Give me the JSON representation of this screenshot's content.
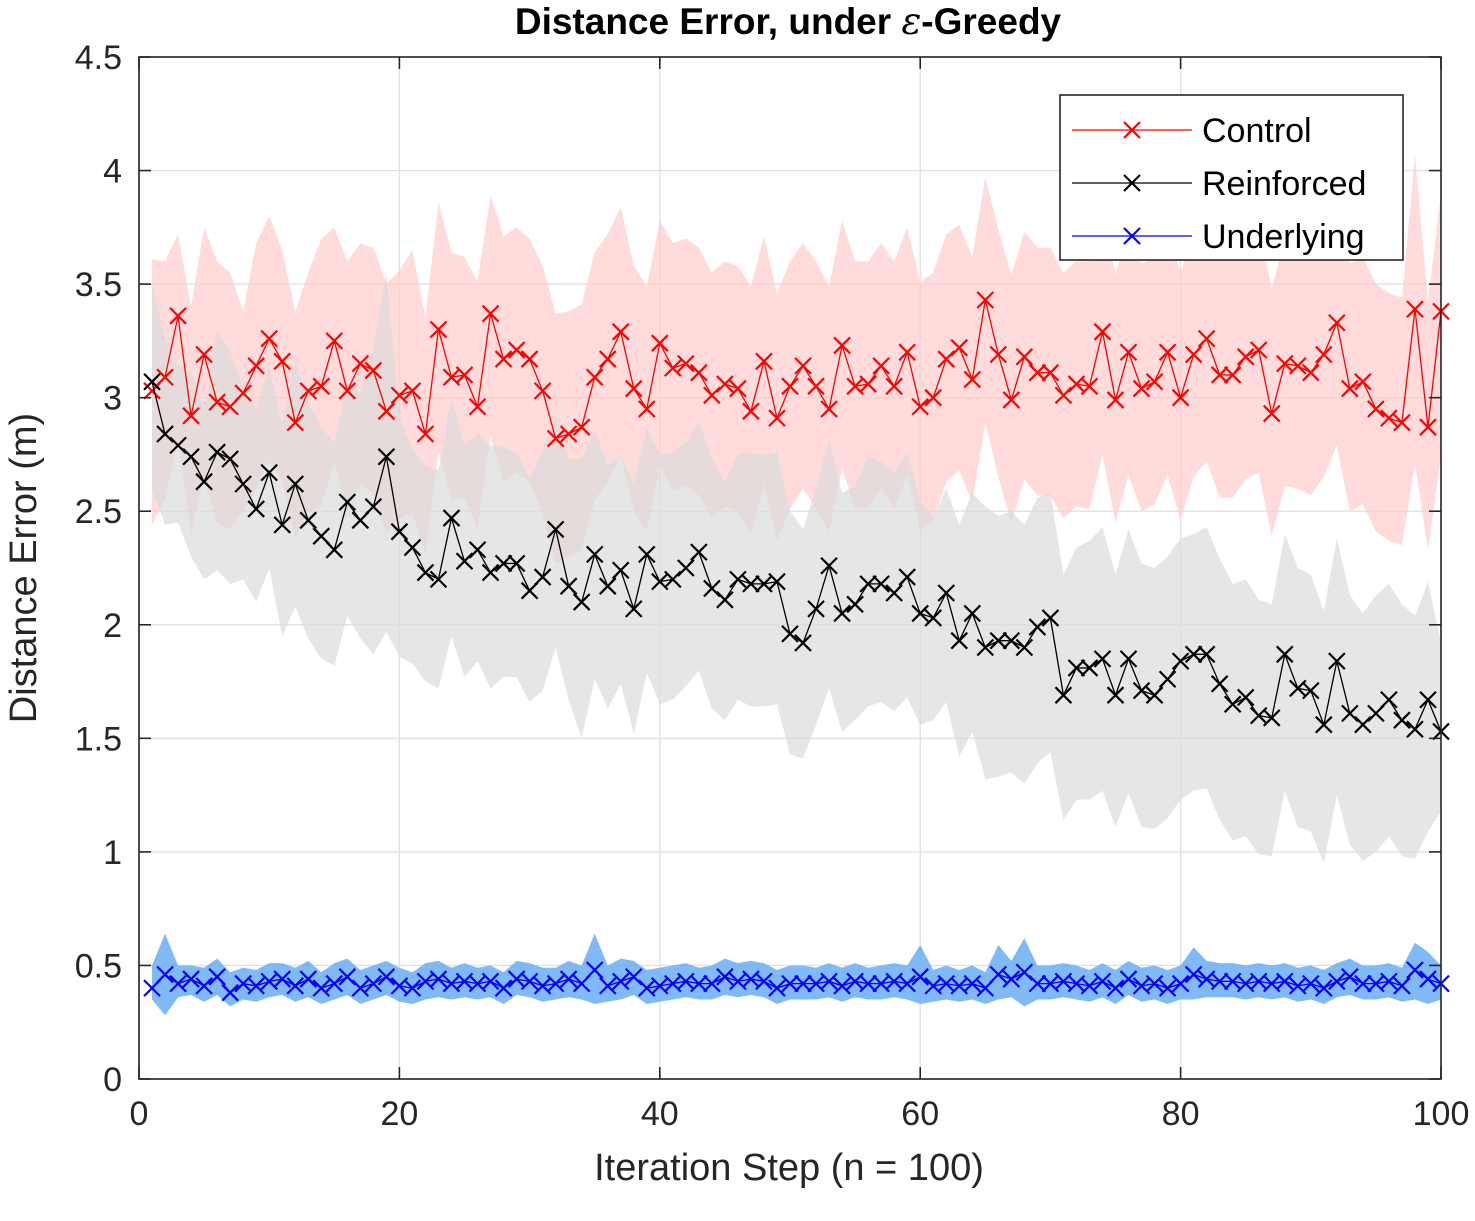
{
  "chart_data": {
    "type": "line",
    "title_prefix": "Distance Error, under ",
    "title_symbol": "ε",
    "title_suffix": "-Greedy",
    "xlabel": "Iteration Step (n = 100)",
    "ylabel": "Distance Error (m)",
    "xlim": [
      0,
      100
    ],
    "ylim": [
      0,
      4.5
    ],
    "xticks": [
      0,
      20,
      40,
      60,
      80,
      100
    ],
    "yticks": [
      0,
      0.5,
      1,
      1.5,
      2,
      2.5,
      3,
      3.5,
      4,
      4.5
    ],
    "xtick_labels": [
      "0",
      "20",
      "40",
      "60",
      "80",
      "100"
    ],
    "ytick_labels": [
      "0",
      "0.5",
      "1",
      "1.5",
      "2",
      "2.5",
      "3",
      "3.5",
      "4",
      "4.5"
    ],
    "grid": true,
    "legend_position": "top-right",
    "series": [
      {
        "name": "Control",
        "color": "#ff0000",
        "band_color": "#ffcccc",
        "marker": "x",
        "x_start": 1,
        "values": [
          3.03,
          3.09,
          3.36,
          2.92,
          3.19,
          2.98,
          2.96,
          3.02,
          3.14,
          3.26,
          3.16,
          2.89,
          3.03,
          3.05,
          3.25,
          3.03,
          3.15,
          3.12,
          2.94,
          3.01,
          3.03,
          2.84,
          3.3,
          3.09,
          3.1,
          2.96,
          3.37,
          3.17,
          3.21,
          3.17,
          3.03,
          2.82,
          2.84,
          2.87,
          3.09,
          3.17,
          3.29,
          3.04,
          2.95,
          3.24,
          3.13,
          3.15,
          3.11,
          3.01,
          3.06,
          3.04,
          2.94,
          3.16,
          2.91,
          3.05,
          3.14,
          3.05,
          2.95,
          3.23,
          3.05,
          3.06,
          3.14,
          3.05,
          3.2,
          2.96,
          3.0,
          3.17,
          3.22,
          3.08,
          3.43,
          3.19,
          2.99,
          3.18,
          3.11,
          3.11,
          3.01,
          3.06,
          3.05,
          3.29,
          2.99,
          3.2,
          3.04,
          3.07,
          3.2,
          3.0,
          3.19,
          3.26,
          3.1,
          3.1,
          3.18,
          3.21,
          2.93,
          3.15,
          3.14,
          3.11,
          3.19,
          3.33,
          3.04,
          3.07,
          2.95,
          2.91,
          2.89,
          3.39,
          2.87,
          3.38
        ],
        "upper": [
          3.61,
          3.6,
          3.72,
          3.4,
          3.75,
          3.6,
          3.55,
          3.38,
          3.68,
          3.8,
          3.65,
          3.38,
          3.55,
          3.7,
          3.75,
          3.6,
          3.68,
          3.66,
          3.5,
          3.56,
          3.65,
          3.35,
          3.86,
          3.64,
          3.62,
          3.51,
          3.89,
          3.71,
          3.75,
          3.7,
          3.58,
          3.37,
          3.38,
          3.41,
          3.64,
          3.72,
          3.84,
          3.58,
          3.49,
          3.78,
          3.68,
          3.7,
          3.66,
          3.55,
          3.6,
          3.58,
          3.49,
          3.71,
          3.46,
          3.6,
          3.68,
          3.6,
          3.49,
          3.78,
          3.6,
          3.6,
          3.68,
          3.6,
          3.75,
          3.51,
          3.55,
          3.72,
          3.76,
          3.62,
          3.97,
          3.74,
          3.54,
          3.73,
          3.66,
          3.66,
          3.55,
          3.6,
          3.6,
          3.84,
          3.54,
          3.75,
          3.59,
          3.62,
          3.75,
          3.55,
          3.74,
          3.81,
          3.65,
          3.65,
          3.73,
          3.76,
          3.48,
          3.7,
          3.69,
          3.66,
          3.74,
          3.88,
          3.59,
          3.62,
          3.5,
          3.46,
          3.44,
          4.07,
          3.42,
          3.9
        ],
        "lower": [
          2.44,
          2.55,
          2.82,
          2.4,
          2.65,
          2.45,
          2.42,
          2.5,
          2.6,
          2.72,
          2.63,
          2.38,
          2.5,
          2.52,
          2.72,
          2.5,
          2.62,
          2.58,
          2.4,
          2.47,
          2.49,
          2.31,
          2.76,
          2.55,
          2.56,
          2.42,
          2.83,
          2.63,
          2.67,
          2.63,
          2.49,
          2.27,
          2.3,
          2.33,
          2.55,
          2.63,
          2.75,
          2.5,
          2.41,
          2.7,
          2.59,
          2.61,
          2.57,
          2.47,
          2.52,
          2.5,
          2.4,
          2.62,
          2.37,
          2.51,
          2.6,
          2.51,
          2.41,
          2.69,
          2.51,
          2.52,
          2.6,
          2.51,
          2.66,
          2.42,
          2.46,
          2.63,
          2.68,
          2.54,
          2.89,
          2.65,
          2.45,
          2.64,
          2.57,
          2.57,
          2.47,
          2.52,
          2.51,
          2.75,
          2.45,
          2.66,
          2.5,
          2.53,
          2.66,
          2.46,
          2.65,
          2.72,
          2.56,
          2.56,
          2.64,
          2.67,
          2.39,
          2.61,
          2.6,
          2.57,
          2.65,
          2.79,
          2.5,
          2.53,
          2.41,
          2.37,
          2.35,
          2.71,
          2.33,
          2.74
        ]
      },
      {
        "name": "Reinforced",
        "color": "#000000",
        "band_color": "#dcdcdc",
        "marker": "x",
        "x_start": 1,
        "values": [
          3.07,
          2.84,
          2.79,
          2.74,
          2.63,
          2.76,
          2.73,
          2.62,
          2.51,
          2.67,
          2.44,
          2.62,
          2.46,
          2.39,
          2.33,
          2.54,
          2.46,
          2.52,
          2.74,
          2.41,
          2.34,
          2.23,
          2.2,
          2.47,
          2.28,
          2.33,
          2.23,
          2.27,
          2.27,
          2.15,
          2.21,
          2.42,
          2.17,
          2.1,
          2.31,
          2.17,
          2.24,
          2.07,
          2.31,
          2.19,
          2.2,
          2.25,
          2.32,
          2.16,
          2.11,
          2.2,
          2.18,
          2.18,
          2.19,
          1.96,
          1.92,
          2.07,
          2.26,
          2.05,
          2.09,
          2.18,
          2.18,
          2.14,
          2.21,
          2.05,
          2.03,
          2.14,
          1.93,
          2.05,
          1.9,
          1.93,
          1.93,
          1.9,
          1.99,
          2.03,
          1.69,
          1.81,
          1.81,
          1.85,
          1.69,
          1.85,
          1.71,
          1.69,
          1.76,
          1.84,
          1.87,
          1.87,
          1.74,
          1.65,
          1.68,
          1.6,
          1.59,
          1.87,
          1.72,
          1.71,
          1.56,
          1.84,
          1.61,
          1.56,
          1.61,
          1.67,
          1.58,
          1.54,
          1.67,
          1.53
        ],
        "upper": [
          3.5,
          3.28,
          3.14,
          3.12,
          2.95,
          3.3,
          3.2,
          3.05,
          2.95,
          3.14,
          2.88,
          3.17,
          2.98,
          2.87,
          2.8,
          3.07,
          3.02,
          3.22,
          3.55,
          2.91,
          2.78,
          2.7,
          2.68,
          3.0,
          2.79,
          2.84,
          2.79,
          2.78,
          2.76,
          2.64,
          2.77,
          2.92,
          2.73,
          2.73,
          2.86,
          2.7,
          2.75,
          2.62,
          2.87,
          2.75,
          2.76,
          2.8,
          2.89,
          2.73,
          2.63,
          2.75,
          2.76,
          2.75,
          2.76,
          2.5,
          2.42,
          2.6,
          2.82,
          2.58,
          2.61,
          2.74,
          2.72,
          2.67,
          2.76,
          2.55,
          2.47,
          2.6,
          2.44,
          2.58,
          2.52,
          2.48,
          2.5,
          2.44,
          2.56,
          2.58,
          2.22,
          2.34,
          2.37,
          2.43,
          2.22,
          2.42,
          2.27,
          2.25,
          2.3,
          2.38,
          2.4,
          2.43,
          2.29,
          2.18,
          2.2,
          2.11,
          2.09,
          2.4,
          2.25,
          2.22,
          2.06,
          2.38,
          2.13,
          2.05,
          2.13,
          2.18,
          2.09,
          2.04,
          2.19,
          1.92
        ],
        "lower": [
          2.6,
          2.44,
          2.45,
          2.3,
          2.2,
          2.24,
          2.18,
          2.2,
          2.1,
          2.25,
          1.95,
          2.08,
          1.94,
          1.85,
          1.82,
          2.04,
          1.94,
          1.87,
          1.97,
          1.86,
          1.83,
          1.75,
          1.72,
          1.95,
          1.77,
          1.84,
          1.72,
          1.77,
          1.77,
          1.66,
          1.71,
          1.9,
          1.67,
          1.5,
          1.76,
          1.63,
          1.74,
          1.52,
          1.79,
          1.65,
          1.67,
          1.73,
          1.8,
          1.63,
          1.58,
          1.67,
          1.64,
          1.64,
          1.65,
          1.43,
          1.41,
          1.56,
          1.72,
          1.53,
          1.58,
          1.64,
          1.66,
          1.62,
          1.68,
          1.56,
          1.58,
          1.66,
          1.42,
          1.53,
          1.32,
          1.33,
          1.35,
          1.3,
          1.39,
          1.44,
          1.14,
          1.23,
          1.23,
          1.27,
          1.11,
          1.26,
          1.11,
          1.1,
          1.15,
          1.23,
          1.27,
          1.28,
          1.14,
          1.05,
          1.07,
          0.99,
          0.98,
          1.27,
          1.11,
          1.09,
          0.95,
          1.25,
          1.03,
          0.96,
          1.0,
          1.07,
          0.98,
          0.97,
          1.09,
          1.18
        ]
      },
      {
        "name": "Underlying",
        "color": "#0000ff",
        "band_color": "#6aaef5",
        "marker": "x",
        "x_start": 1,
        "values": [
          0.4,
          0.46,
          0.42,
          0.44,
          0.41,
          0.45,
          0.38,
          0.42,
          0.41,
          0.43,
          0.44,
          0.41,
          0.44,
          0.4,
          0.42,
          0.45,
          0.4,
          0.42,
          0.45,
          0.41,
          0.4,
          0.43,
          0.44,
          0.42,
          0.43,
          0.42,
          0.43,
          0.4,
          0.44,
          0.43,
          0.41,
          0.42,
          0.44,
          0.42,
          0.48,
          0.41,
          0.43,
          0.45,
          0.4,
          0.41,
          0.42,
          0.43,
          0.42,
          0.42,
          0.45,
          0.43,
          0.44,
          0.43,
          0.4,
          0.42,
          0.42,
          0.42,
          0.43,
          0.41,
          0.43,
          0.42,
          0.42,
          0.43,
          0.42,
          0.45,
          0.41,
          0.42,
          0.41,
          0.42,
          0.4,
          0.46,
          0.44,
          0.47,
          0.42,
          0.42,
          0.43,
          0.42,
          0.41,
          0.43,
          0.4,
          0.44,
          0.41,
          0.42,
          0.4,
          0.42,
          0.46,
          0.44,
          0.43,
          0.43,
          0.42,
          0.43,
          0.42,
          0.43,
          0.41,
          0.42,
          0.4,
          0.43,
          0.45,
          0.42,
          0.42,
          0.43,
          0.41,
          0.48,
          0.44,
          0.42
        ],
        "upper": [
          0.5,
          0.64,
          0.5,
          0.5,
          0.49,
          0.53,
          0.47,
          0.49,
          0.48,
          0.51,
          0.51,
          0.49,
          0.52,
          0.47,
          0.51,
          0.53,
          0.48,
          0.5,
          0.52,
          0.49,
          0.47,
          0.51,
          0.52,
          0.49,
          0.51,
          0.49,
          0.5,
          0.47,
          0.52,
          0.51,
          0.49,
          0.49,
          0.52,
          0.5,
          0.64,
          0.5,
          0.53,
          0.52,
          0.48,
          0.49,
          0.5,
          0.51,
          0.49,
          0.5,
          0.53,
          0.51,
          0.52,
          0.51,
          0.48,
          0.5,
          0.5,
          0.49,
          0.51,
          0.49,
          0.51,
          0.49,
          0.5,
          0.51,
          0.5,
          0.59,
          0.48,
          0.5,
          0.48,
          0.5,
          0.47,
          0.59,
          0.52,
          0.62,
          0.5,
          0.5,
          0.51,
          0.5,
          0.48,
          0.51,
          0.48,
          0.52,
          0.49,
          0.5,
          0.48,
          0.5,
          0.58,
          0.52,
          0.51,
          0.51,
          0.5,
          0.51,
          0.5,
          0.51,
          0.49,
          0.5,
          0.48,
          0.51,
          0.53,
          0.5,
          0.5,
          0.51,
          0.49,
          0.6,
          0.56,
          0.5
        ],
        "lower": [
          0.35,
          0.28,
          0.36,
          0.37,
          0.34,
          0.37,
          0.32,
          0.35,
          0.34,
          0.36,
          0.37,
          0.34,
          0.36,
          0.33,
          0.35,
          0.37,
          0.33,
          0.35,
          0.37,
          0.34,
          0.33,
          0.35,
          0.36,
          0.35,
          0.36,
          0.35,
          0.36,
          0.33,
          0.37,
          0.36,
          0.34,
          0.35,
          0.36,
          0.35,
          0.33,
          0.34,
          0.35,
          0.37,
          0.33,
          0.34,
          0.35,
          0.36,
          0.35,
          0.35,
          0.37,
          0.36,
          0.37,
          0.36,
          0.33,
          0.35,
          0.35,
          0.35,
          0.36,
          0.34,
          0.36,
          0.35,
          0.35,
          0.36,
          0.35,
          0.33,
          0.34,
          0.35,
          0.34,
          0.35,
          0.33,
          0.35,
          0.36,
          0.32,
          0.35,
          0.35,
          0.36,
          0.35,
          0.34,
          0.36,
          0.33,
          0.37,
          0.34,
          0.35,
          0.33,
          0.35,
          0.35,
          0.36,
          0.36,
          0.36,
          0.35,
          0.36,
          0.35,
          0.36,
          0.34,
          0.35,
          0.33,
          0.36,
          0.37,
          0.35,
          0.35,
          0.36,
          0.34,
          0.35,
          0.33,
          0.35
        ]
      }
    ]
  }
}
